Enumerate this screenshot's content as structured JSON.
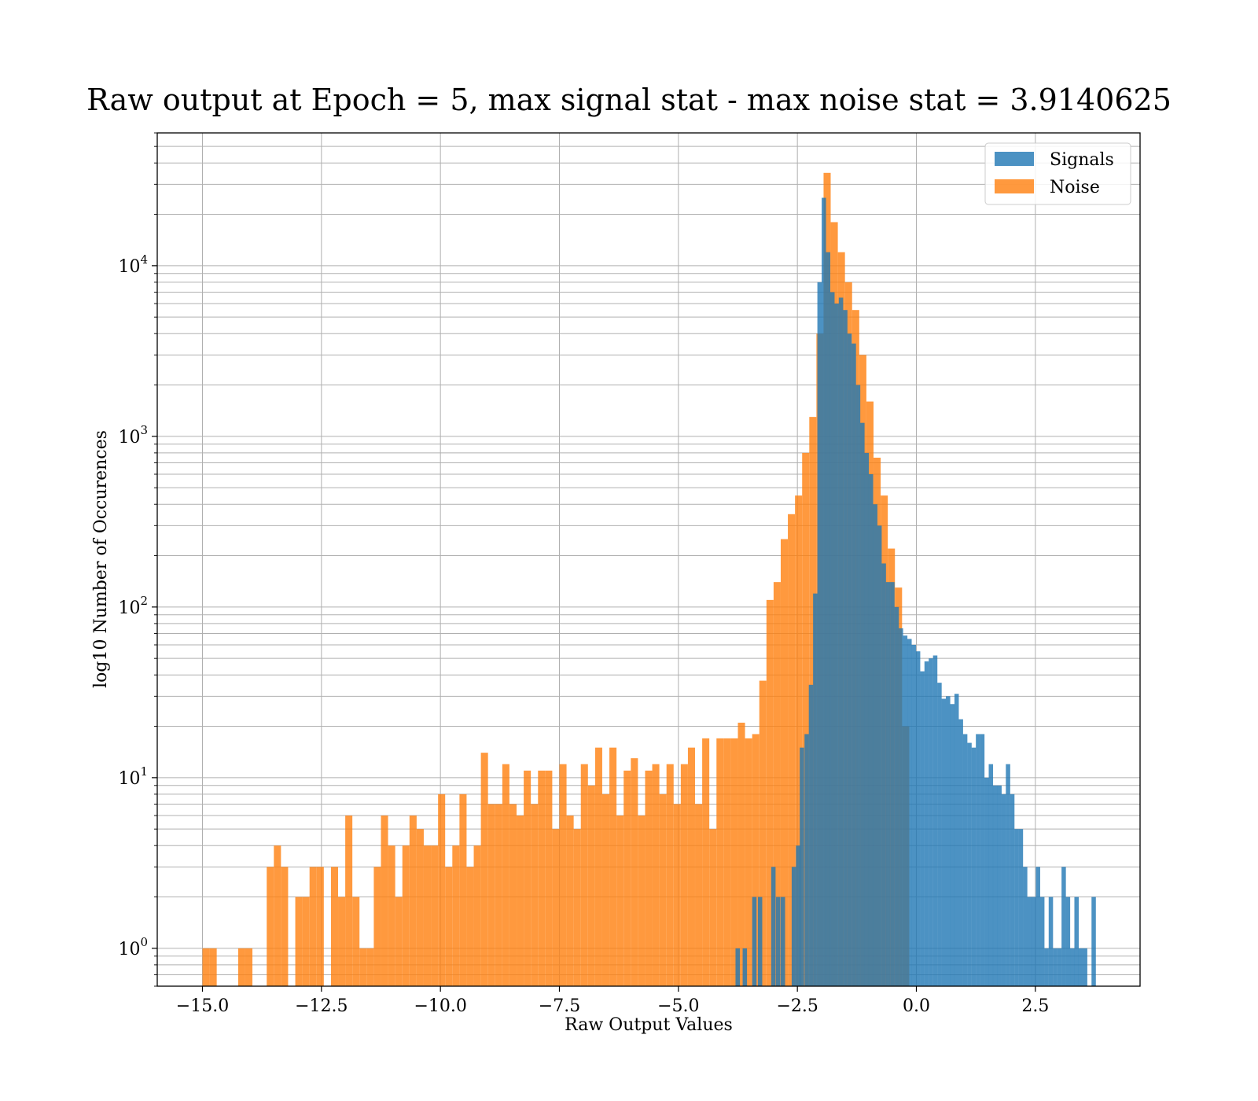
{
  "chart_data": {
    "type": "histogram",
    "title": "Raw output at Epoch = 5, max signal stat - max noise stat = 3.9140625",
    "xlabel": "Raw Output Values",
    "ylabel": "log10 Number of Occurences",
    "xlim": [
      -15.95,
      4.7
    ],
    "ylim": [
      0.6,
      60000
    ],
    "yscale": "log",
    "grid": true,
    "legend_position": "top-right",
    "x_ticks": [
      {
        "value": -15.0,
        "label": "−15.0"
      },
      {
        "value": -12.5,
        "label": "−12.5"
      },
      {
        "value": -10.0,
        "label": "−10.0"
      },
      {
        "value": -7.5,
        "label": "−7.5"
      },
      {
        "value": -5.0,
        "label": "−5.0"
      },
      {
        "value": -2.5,
        "label": "−2.5"
      },
      {
        "value": 0.0,
        "label": "0.0"
      },
      {
        "value": 2.5,
        "label": "2.5"
      }
    ],
    "y_ticks": [
      {
        "value": 1,
        "base": "10",
        "exp": "0"
      },
      {
        "value": 10,
        "base": "10",
        "exp": "1"
      },
      {
        "value": 100,
        "base": "10",
        "exp": "2"
      },
      {
        "value": 1000,
        "base": "10",
        "exp": "3"
      },
      {
        "value": 10000,
        "base": "10",
        "exp": "4"
      }
    ],
    "series": [
      {
        "name": "Signals",
        "color": "#1f77b4",
        "opacity": 0.8,
        "bin_width": 0.0915,
        "bins": [
          [
            -3.8,
            1
          ],
          [
            -3.65,
            1
          ],
          [
            -3.45,
            2
          ],
          [
            -3.33,
            2
          ],
          [
            -3.05,
            3
          ],
          [
            -2.95,
            2
          ],
          [
            -2.85,
            2
          ],
          [
            -2.62,
            3
          ],
          [
            -2.53,
            4
          ],
          [
            -2.45,
            15
          ],
          [
            -2.35,
            18
          ],
          [
            -2.26,
            35
          ],
          [
            -2.17,
            120
          ],
          [
            -2.08,
            8000
          ],
          [
            -1.99,
            25000
          ],
          [
            -1.9,
            12000
          ],
          [
            -1.81,
            7000
          ],
          [
            -1.72,
            6000
          ],
          [
            -1.63,
            6500
          ],
          [
            -1.54,
            5500
          ],
          [
            -1.45,
            4000
          ],
          [
            -1.36,
            3500
          ],
          [
            -1.27,
            2000
          ],
          [
            -1.18,
            1200
          ],
          [
            -1.09,
            800
          ],
          [
            -1.0,
            600
          ],
          [
            -0.91,
            400
          ],
          [
            -0.82,
            300
          ],
          [
            -0.73,
            180
          ],
          [
            -0.64,
            140
          ],
          [
            -0.55,
            140
          ],
          [
            -0.46,
            100
          ],
          [
            -0.37,
            75
          ],
          [
            -0.28,
            68
          ],
          [
            -0.19,
            65
          ],
          [
            -0.1,
            60
          ],
          [
            -0.01,
            55
          ],
          [
            0.08,
            42
          ],
          [
            0.17,
            48
          ],
          [
            0.26,
            50
          ],
          [
            0.35,
            52
          ],
          [
            0.44,
            36
          ],
          [
            0.53,
            29
          ],
          [
            0.62,
            30
          ],
          [
            0.71,
            27
          ],
          [
            0.8,
            31
          ],
          [
            0.89,
            22
          ],
          [
            0.98,
            18
          ],
          [
            1.07,
            16
          ],
          [
            1.16,
            15
          ],
          [
            1.25,
            18
          ],
          [
            1.34,
            18
          ],
          [
            1.43,
            10
          ],
          [
            1.52,
            12
          ],
          [
            1.61,
            9
          ],
          [
            1.7,
            9
          ],
          [
            1.79,
            8
          ],
          [
            1.88,
            12
          ],
          [
            1.97,
            8
          ],
          [
            2.06,
            5
          ],
          [
            2.15,
            5
          ],
          [
            2.24,
            3
          ],
          [
            2.33,
            2
          ],
          [
            2.42,
            2
          ],
          [
            2.51,
            3
          ],
          [
            2.6,
            2
          ],
          [
            2.69,
            1
          ],
          [
            2.78,
            2
          ],
          [
            2.87,
            1
          ],
          [
            2.96,
            1
          ],
          [
            3.05,
            3
          ],
          [
            3.14,
            2
          ],
          [
            3.23,
            1
          ],
          [
            3.32,
            2
          ],
          [
            3.41,
            1
          ],
          [
            3.5,
            1
          ],
          [
            3.68,
            2
          ]
        ]
      },
      {
        "name": "Noise",
        "color": "#ff7f0e",
        "opacity": 0.8,
        "bin_width": 0.1495,
        "bins": [
          [
            -15.0,
            1
          ],
          [
            -14.85,
            1
          ],
          [
            -14.25,
            1
          ],
          [
            -14.1,
            1
          ],
          [
            -13.65,
            3
          ],
          [
            -13.5,
            4
          ],
          [
            -13.35,
            3
          ],
          [
            -13.05,
            2
          ],
          [
            -12.9,
            2
          ],
          [
            -12.75,
            3
          ],
          [
            -12.6,
            3
          ],
          [
            -12.3,
            3
          ],
          [
            -12.15,
            2
          ],
          [
            -12.0,
            6
          ],
          [
            -11.85,
            2
          ],
          [
            -11.7,
            1
          ],
          [
            -11.55,
            1
          ],
          [
            -11.4,
            3
          ],
          [
            -11.25,
            6
          ],
          [
            -11.1,
            4
          ],
          [
            -10.95,
            2
          ],
          [
            -10.8,
            4
          ],
          [
            -10.65,
            6
          ],
          [
            -10.5,
            5
          ],
          [
            -10.35,
            4
          ],
          [
            -10.2,
            4
          ],
          [
            -10.05,
            8
          ],
          [
            -9.9,
            3
          ],
          [
            -9.75,
            4
          ],
          [
            -9.6,
            8
          ],
          [
            -9.45,
            3
          ],
          [
            -9.3,
            4
          ],
          [
            -9.15,
            14
          ],
          [
            -9.0,
            7
          ],
          [
            -8.85,
            7
          ],
          [
            -8.7,
            12
          ],
          [
            -8.55,
            7
          ],
          [
            -8.4,
            6
          ],
          [
            -8.25,
            11
          ],
          [
            -8.1,
            7
          ],
          [
            -7.95,
            11
          ],
          [
            -7.8,
            11
          ],
          [
            -7.65,
            5
          ],
          [
            -7.5,
            12
          ],
          [
            -7.35,
            6
          ],
          [
            -7.2,
            5
          ],
          [
            -7.05,
            12
          ],
          [
            -6.9,
            9
          ],
          [
            -6.75,
            15
          ],
          [
            -6.6,
            8
          ],
          [
            -6.45,
            15
          ],
          [
            -6.3,
            6
          ],
          [
            -6.15,
            11
          ],
          [
            -6.0,
            13
          ],
          [
            -5.85,
            6
          ],
          [
            -5.7,
            11
          ],
          [
            -5.55,
            12
          ],
          [
            -5.4,
            8
          ],
          [
            -5.25,
            12
          ],
          [
            -5.1,
            7
          ],
          [
            -4.95,
            12
          ],
          [
            -4.8,
            15
          ],
          [
            -4.65,
            7
          ],
          [
            -4.5,
            17
          ],
          [
            -4.35,
            5
          ],
          [
            -4.2,
            17
          ],
          [
            -4.05,
            17
          ],
          [
            -3.9,
            17
          ],
          [
            -3.75,
            21
          ],
          [
            -3.6,
            17
          ],
          [
            -3.45,
            18
          ],
          [
            -3.3,
            37
          ],
          [
            -3.15,
            110
          ],
          [
            -3.0,
            140
          ],
          [
            -2.85,
            250
          ],
          [
            -2.7,
            350
          ],
          [
            -2.55,
            450
          ],
          [
            -2.4,
            800
          ],
          [
            -2.25,
            1300
          ],
          [
            -2.1,
            4000
          ],
          [
            -1.95,
            35000
          ],
          [
            -1.8,
            18000
          ],
          [
            -1.65,
            12000
          ],
          [
            -1.5,
            8000
          ],
          [
            -1.35,
            5500
          ],
          [
            -1.2,
            3000
          ],
          [
            -1.05,
            1600
          ],
          [
            -0.9,
            750
          ],
          [
            -0.75,
            450
          ],
          [
            -0.6,
            220
          ],
          [
            -0.45,
            130
          ],
          [
            -0.3,
            20
          ]
        ]
      }
    ]
  }
}
